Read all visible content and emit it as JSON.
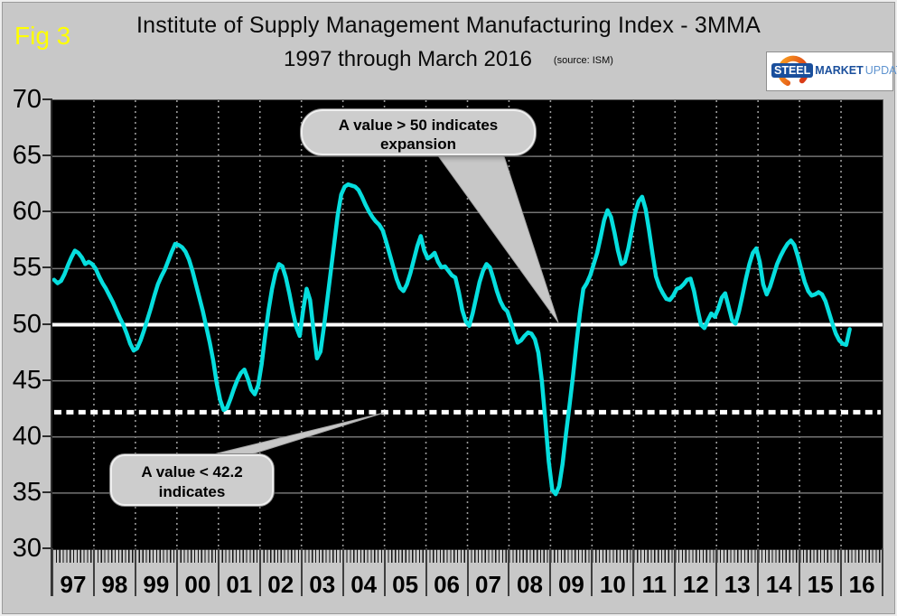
{
  "fig_label": "Fig 3",
  "title": {
    "line1": "Institute of Supply Management Manufacturing Index - 3MMA",
    "line2": "1997 through March 2016",
    "source": "(source: ISM)"
  },
  "logo": {
    "word1": "STEEL",
    "word2": "MARKET",
    "word3": "UPDATE"
  },
  "callouts": {
    "expansion": {
      "line1": "A value > 50 indicates",
      "line2": "expansion"
    },
    "contraction": {
      "line1": "A value < 42.2",
      "line2": "indicates"
    }
  },
  "chart_data": {
    "type": "line",
    "title": "Institute of Supply Management Manufacturing Index - 3MMA, 1997 through March 2016",
    "source": "ISM",
    "x_unit": "month",
    "x_start": "1997-01",
    "x_end": "2016-03",
    "x_year_labels": [
      "97",
      "98",
      "99",
      "00",
      "01",
      "02",
      "03",
      "04",
      "05",
      "06",
      "07",
      "08",
      "09",
      "10",
      "11",
      "12",
      "13",
      "14",
      "15",
      "16"
    ],
    "yticks": [
      70,
      65,
      60,
      55,
      50,
      45,
      40,
      35,
      30
    ],
    "ylim": [
      30,
      70
    ],
    "grid": {
      "horizontal": true,
      "vertical_yearly_dotted": true
    },
    "reference_lines": {
      "expansion_threshold": 50,
      "contraction_threshold": 42.2
    },
    "series": [
      {
        "name": "ISM Manufacturing Index (3-month moving average)",
        "color": "#06dede",
        "monthly_values": [
          54.0,
          53.7,
          53.9,
          54.5,
          55.3,
          56.0,
          56.6,
          56.4,
          56.0,
          55.4,
          55.6,
          55.4,
          55.0,
          54.3,
          53.7,
          53.2,
          52.6,
          52.0,
          51.3,
          50.6,
          50.0,
          49.2,
          48.3,
          47.7,
          47.9,
          48.6,
          49.5,
          50.5,
          51.5,
          52.6,
          53.6,
          54.3,
          54.9,
          55.7,
          56.5,
          57.2,
          57.1,
          56.9,
          56.5,
          55.8,
          54.8,
          53.6,
          52.4,
          51.2,
          49.8,
          48.4,
          46.8,
          44.8,
          43.3,
          42.4,
          42.6,
          43.4,
          44.3,
          45.1,
          45.7,
          46.0,
          45.2,
          44.2,
          43.8,
          44.6,
          46.5,
          49.0,
          51.3,
          53.2,
          54.6,
          55.4,
          55.2,
          54.2,
          52.8,
          51.2,
          49.8,
          49.0,
          51.3,
          53.2,
          52.2,
          49.5,
          47.0,
          47.6,
          49.8,
          52.3,
          54.8,
          57.3,
          59.8,
          61.6,
          62.3,
          62.5,
          62.4,
          62.3,
          62.0,
          61.4,
          60.7,
          60.1,
          59.6,
          59.2,
          58.9,
          58.4,
          57.4,
          56.3,
          55.2,
          54.1,
          53.3,
          53.0,
          53.6,
          54.6,
          55.8,
          57.0,
          57.9,
          56.6,
          55.9,
          56.1,
          56.4,
          55.6,
          55.1,
          55.2,
          54.8,
          54.4,
          54.2,
          52.9,
          51.3,
          50.3,
          49.9,
          51.0,
          52.4,
          53.8,
          54.8,
          55.4,
          55.1,
          54.1,
          53.0,
          52.1,
          51.5,
          51.2,
          50.3,
          49.3,
          48.4,
          48.6,
          49.0,
          49.3,
          49.2,
          48.7,
          47.5,
          45.0,
          41.5,
          37.8,
          35.3,
          34.9,
          35.6,
          37.6,
          40.3,
          42.8,
          45.4,
          48.3,
          51.0,
          53.2,
          53.7,
          54.4,
          55.4,
          56.4,
          57.8,
          59.3,
          60.2,
          59.6,
          58.2,
          56.6,
          55.4,
          55.6,
          56.8,
          58.4,
          60.0,
          61.0,
          61.4,
          60.3,
          58.4,
          56.3,
          54.3,
          53.4,
          52.8,
          52.3,
          52.2,
          52.6,
          53.2,
          53.3,
          53.6,
          54.0,
          54.1,
          53.0,
          51.4,
          50.0,
          49.7,
          50.4,
          51.0,
          50.7,
          51.4,
          52.4,
          52.8,
          51.6,
          50.4,
          50.1,
          51.2,
          52.6,
          54.1,
          55.4,
          56.4,
          56.8,
          55.6,
          53.6,
          52.7,
          53.4,
          54.4,
          55.4,
          56.1,
          56.7,
          57.2,
          57.5,
          57.1,
          56.1,
          54.9,
          53.8,
          53.0,
          52.6,
          52.7,
          52.9,
          52.7,
          52.1,
          51.1,
          50.1,
          49.2,
          48.6,
          48.3,
          48.2,
          49.6
        ]
      }
    ],
    "legend": {
      "visible": false
    }
  },
  "colors": {
    "background": "#c8c8c8",
    "plot_background": "#000000",
    "series_line": "#06dede",
    "reference_lines": "#ffffff",
    "fig_label": "#ffff00",
    "logo_blue": "#1a4f9c",
    "logo_light_blue": "#5e93cf",
    "logo_orange": "#e8581c"
  }
}
